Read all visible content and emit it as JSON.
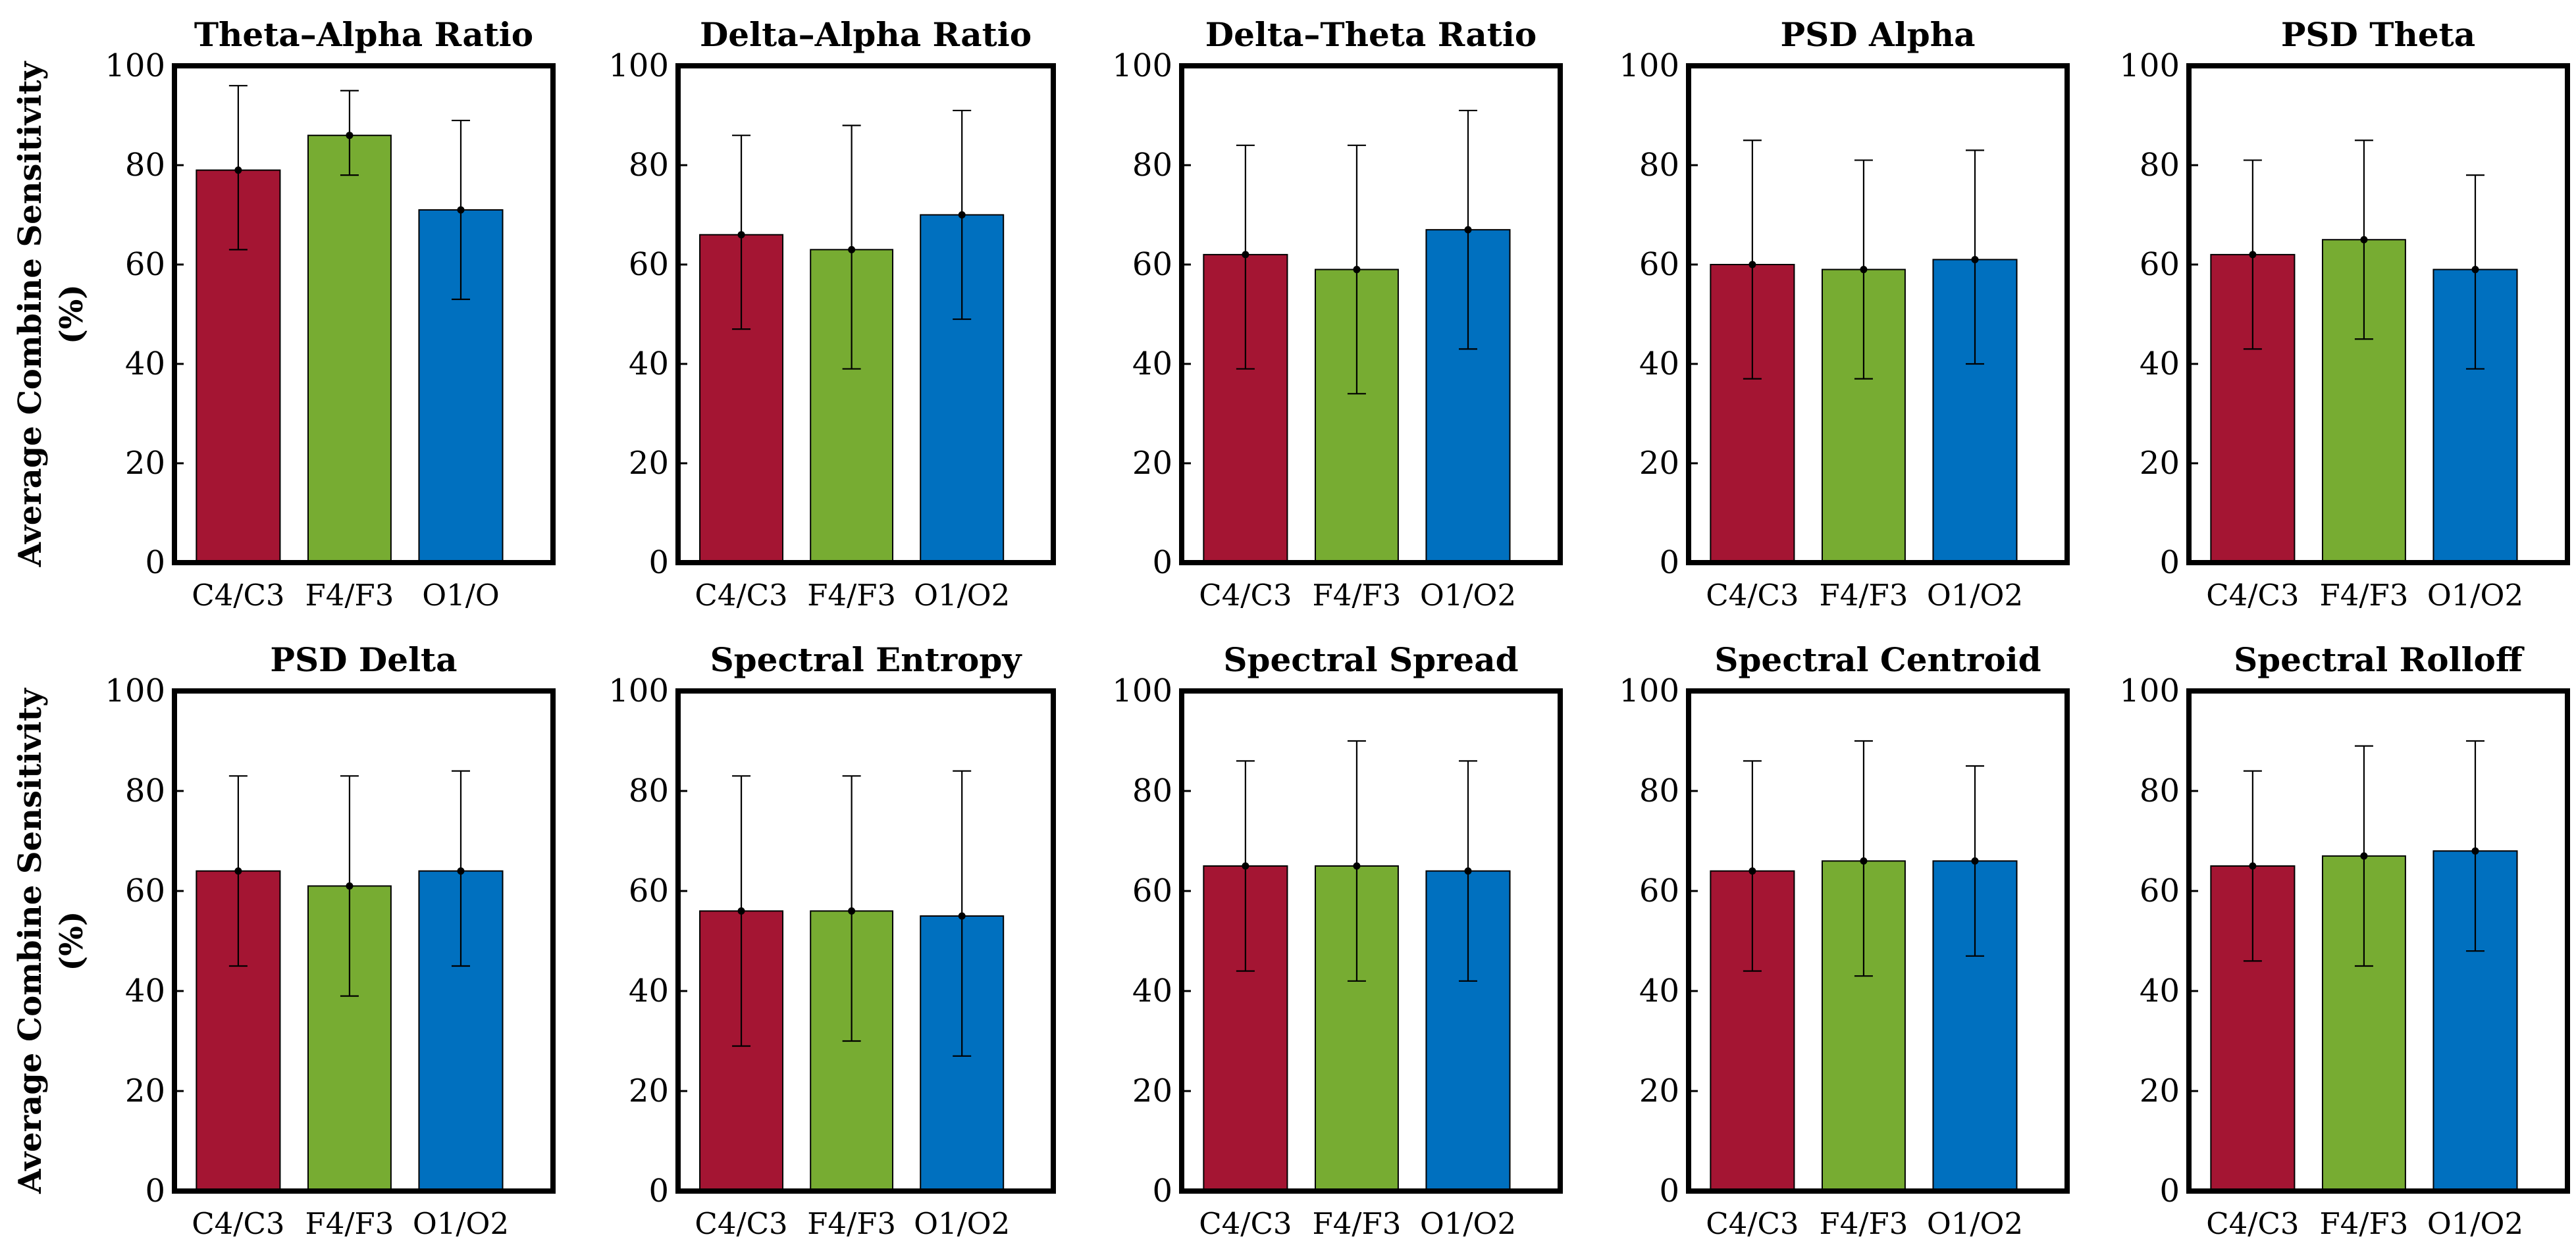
{
  "colors": {
    "bar1": "#A41533",
    "bar2": "#77AC32",
    "bar3": "#0070BF"
  },
  "chart_data": [
    {
      "type": "bar",
      "title": "Theta–Alpha Ratio",
      "categories": [
        "C4/C3",
        "F4/F3",
        "O1/O"
      ],
      "values": [
        79,
        86,
        71
      ],
      "error_high": [
        96,
        95,
        89
      ],
      "error_low": [
        63,
        78,
        53
      ],
      "ylabel_line1": "Average Combine Sensitivity",
      "ylabel_line2": "(%)",
      "yticks": [
        "0",
        "20",
        "40",
        "60",
        "80",
        "100"
      ],
      "ylim": [
        0,
        100
      ]
    },
    {
      "type": "bar",
      "title": "Delta–Alpha Ratio",
      "categories": [
        "C4/C3",
        "F4/F3",
        "O1/O2"
      ],
      "values": [
        66,
        63,
        70
      ],
      "error_high": [
        86,
        88,
        91
      ],
      "error_low": [
        47,
        39,
        49
      ],
      "yticks": [
        "0",
        "20",
        "40",
        "60",
        "80",
        "100"
      ],
      "ylim": [
        0,
        100
      ]
    },
    {
      "type": "bar",
      "title": "Delta–Theta Ratio",
      "categories": [
        "C4/C3",
        "F4/F3",
        "O1/O2"
      ],
      "values": [
        62,
        59,
        67
      ],
      "error_high": [
        84,
        84,
        91
      ],
      "error_low": [
        39,
        34,
        43
      ],
      "yticks": [
        "0",
        "20",
        "40",
        "60",
        "80",
        "100"
      ],
      "ylim": [
        0,
        100
      ]
    },
    {
      "type": "bar",
      "title": "PSD Alpha",
      "categories": [
        "C4/C3",
        "F4/F3",
        "O1/O2"
      ],
      "values": [
        60,
        59,
        61
      ],
      "error_high": [
        85,
        81,
        83
      ],
      "error_low": [
        37,
        37,
        40
      ],
      "yticks": [
        "0",
        "20",
        "40",
        "60",
        "80",
        "100"
      ],
      "ylim": [
        0,
        100
      ]
    },
    {
      "type": "bar",
      "title": "PSD Theta",
      "categories": [
        "C4/C3",
        "F4/F3",
        "O1/O2"
      ],
      "values": [
        62,
        65,
        59
      ],
      "error_high": [
        81,
        85,
        78
      ],
      "error_low": [
        43,
        45,
        39
      ],
      "yticks": [
        "0",
        "20",
        "40",
        "60",
        "80",
        "100"
      ],
      "ylim": [
        0,
        100
      ]
    },
    {
      "type": "bar",
      "title": "PSD Delta",
      "categories": [
        "C4/C3",
        "F4/F3",
        "O1/O2"
      ],
      "values": [
        64,
        61,
        64
      ],
      "error_high": [
        83,
        83,
        84
      ],
      "error_low": [
        45,
        39,
        45
      ],
      "ylabel_line1": "Average Combine Sensitivity",
      "ylabel_line2": "(%)",
      "yticks": [
        "0",
        "20",
        "40",
        "60",
        "80",
        "100"
      ],
      "ylim": [
        0,
        100
      ]
    },
    {
      "type": "bar",
      "title": "Spectral Entropy",
      "categories": [
        "C4/C3",
        "F4/F3",
        "O1/O2"
      ],
      "values": [
        56,
        56,
        55
      ],
      "error_high": [
        83,
        83,
        84
      ],
      "error_low": [
        29,
        30,
        27
      ],
      "yticks": [
        "0",
        "20",
        "40",
        "60",
        "80",
        "100"
      ],
      "ylim": [
        0,
        100
      ]
    },
    {
      "type": "bar",
      "title": "Spectral Spread",
      "categories": [
        "C4/C3",
        "F4/F3",
        "O1/O2"
      ],
      "values": [
        65,
        65,
        64
      ],
      "error_high": [
        86,
        90,
        86
      ],
      "error_low": [
        44,
        42,
        42
      ],
      "yticks": [
        "0",
        "20",
        "40",
        "60",
        "80",
        "100"
      ],
      "ylim": [
        0,
        100
      ]
    },
    {
      "type": "bar",
      "title": "Spectral Centroid",
      "categories": [
        "C4/C3",
        "F4/F3",
        "O1/O2"
      ],
      "values": [
        64,
        66,
        66
      ],
      "error_high": [
        86,
        90,
        85
      ],
      "error_low": [
        44,
        43,
        47
      ],
      "yticks": [
        "0",
        "20",
        "40",
        "60",
        "80",
        "100"
      ],
      "ylim": [
        0,
        100
      ]
    },
    {
      "type": "bar",
      "title": "Spectral Rolloff",
      "categories": [
        "C4/C3",
        "F4/F3",
        "O1/O2"
      ],
      "values": [
        65,
        67,
        68
      ],
      "error_high": [
        84,
        89,
        90
      ],
      "error_low": [
        46,
        45,
        48
      ],
      "yticks": [
        "0",
        "20",
        "40",
        "60",
        "80",
        "100"
      ],
      "ylim": [
        0,
        100
      ]
    }
  ]
}
